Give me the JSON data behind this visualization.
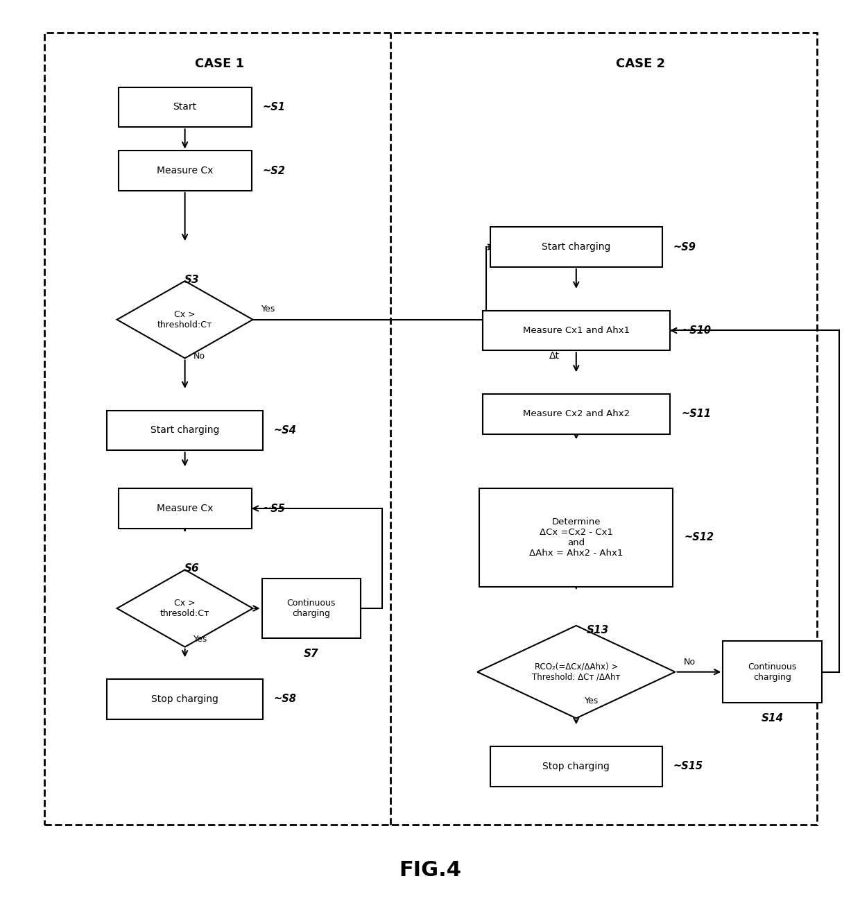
{
  "fig_label": "FIG.4",
  "case1_label": "CASE 1",
  "case2_label": "CASE 2",
  "bg": "#ffffff"
}
